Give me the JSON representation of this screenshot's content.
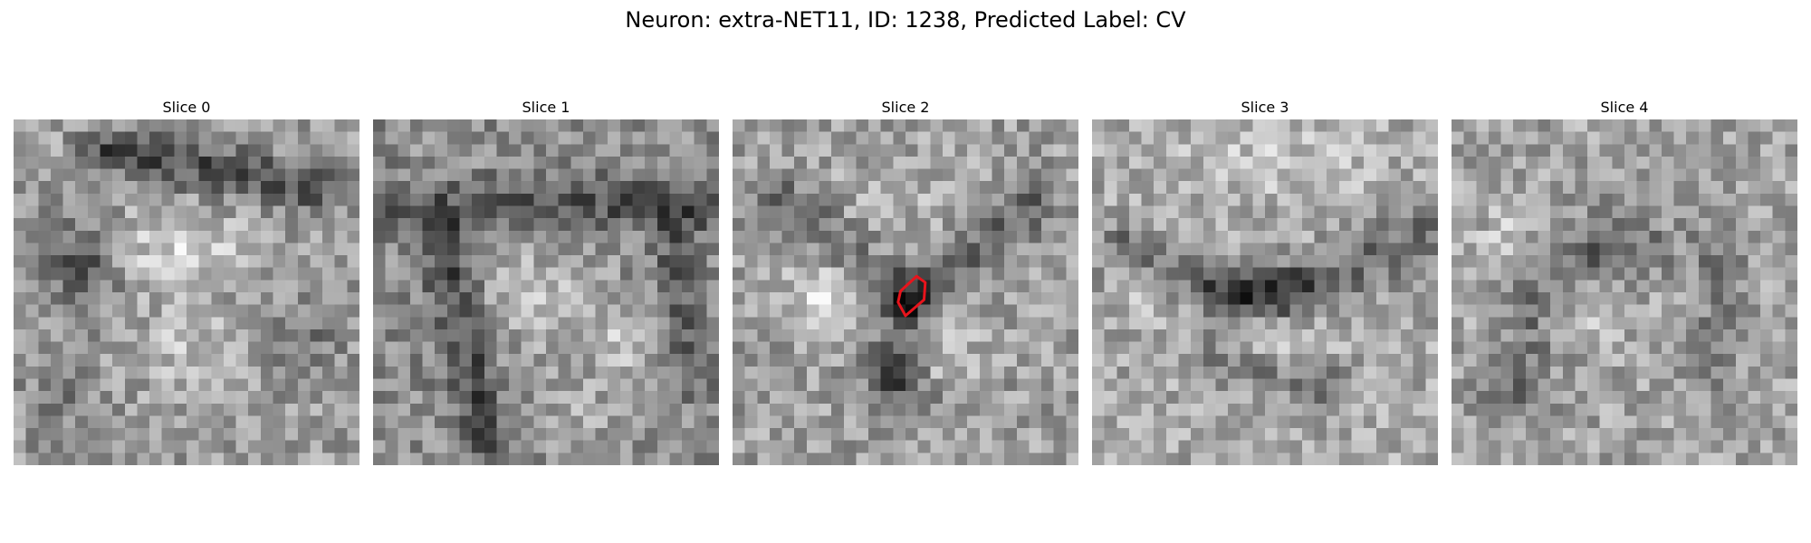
{
  "title": "Neuron: extra-NET11, ID: 1238, Predicted Label: CV",
  "slices": [
    {
      "label": "Slice 0"
    },
    {
      "label": "Slice 1"
    },
    {
      "label": "Slice 2"
    },
    {
      "label": "Slice 3"
    },
    {
      "label": "Slice 4"
    }
  ],
  "colors": {
    "outline": "#e8141c",
    "background": "#ffffff"
  }
}
